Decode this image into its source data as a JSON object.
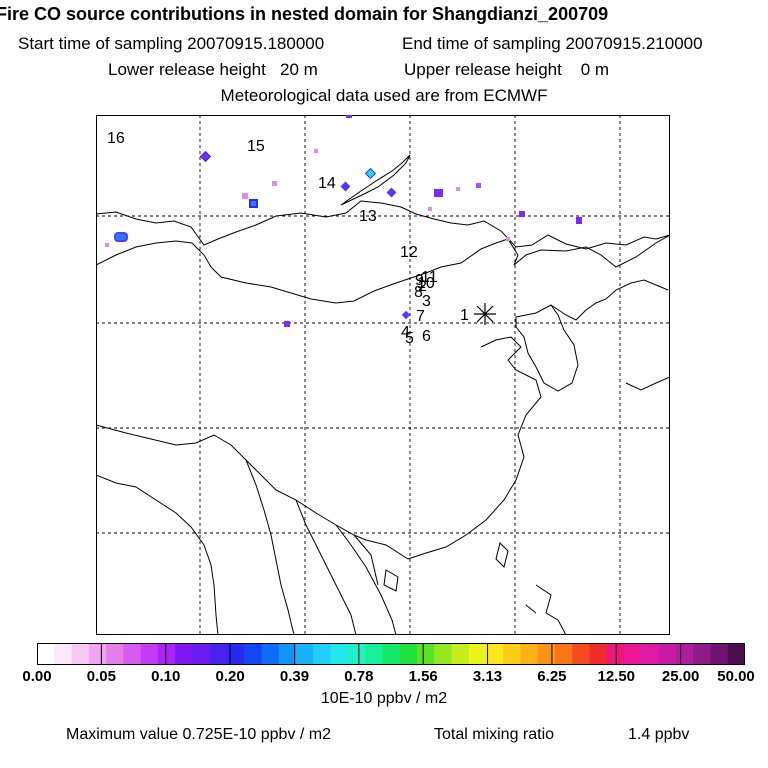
{
  "header": {
    "title": "Fire CO source contributions in nested domain for Shangdianzi_200709",
    "start_label": "Start time of sampling 20070915.180000",
    "end_label": "End time of sampling 20070915.210000",
    "lower_label": "Lower release height   20 m",
    "upper_label": "Upper release height    0 m",
    "met_label": "Meteorological data used are from ECMWF"
  },
  "map": {
    "receptor_marker": "asterisk-icon",
    "labels": [
      "1",
      "2",
      "3",
      "4",
      "5",
      "6",
      "7",
      "8",
      "9",
      "10",
      "11",
      "12",
      "13",
      "14",
      "15",
      "16"
    ],
    "hotspot_colors": [
      "#7a2cff",
      "#4b3cff",
      "#2d7bff",
      "#b04aff",
      "#e08af0",
      "#26d9ff"
    ]
  },
  "colorbar": {
    "colors": [
      "#ffffff",
      "#fde8fb",
      "#f7c9f3",
      "#f0a6ef",
      "#e47fe8",
      "#d65bf0",
      "#c63af5",
      "#a924f7",
      "#7f17f5",
      "#6a1cf2",
      "#4a22f0",
      "#2a2af2",
      "#1346f6",
      "#0f6cf8",
      "#1194fa",
      "#18b5fb",
      "#20cff7",
      "#23e8ea",
      "#1ff2c8",
      "#17f09a",
      "#16e86a",
      "#1ee23b",
      "#5ce224",
      "#93e81f",
      "#c4ef1b",
      "#eef31a",
      "#fde71a",
      "#fdcd17",
      "#fdb116",
      "#fb9415",
      "#f97516",
      "#f54b1c",
      "#f12a2a",
      "#f0157a",
      "#ec1494",
      "#dd18a5",
      "#c71ba6",
      "#b01c9f",
      "#8e1a8a",
      "#6e1470",
      "#4b0e4e"
    ],
    "tick_labels": [
      "0.00",
      "0.05",
      "0.10",
      "0.20",
      "0.39",
      "0.78",
      "1.56",
      "3.13",
      "6.25",
      "12.50",
      "25.00",
      "50.00"
    ],
    "units": "10E-10 ppbv / m2"
  },
  "footer": {
    "max_label": "Maximum value  0.725E-10 ppbv / m2",
    "total_label": "Total mixing ratio",
    "total_value": "1.4 ppbv"
  }
}
